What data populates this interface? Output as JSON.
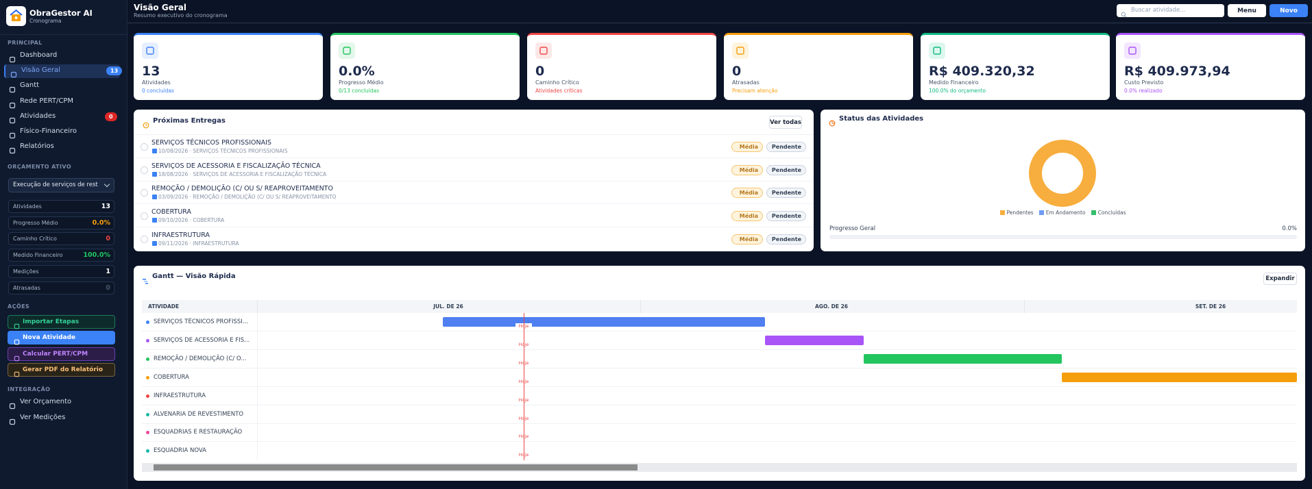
{
  "sidebar": {
    "brand": "ObraGestor AI",
    "brand_sub": "Cronograma",
    "principal_title": "PRINCIPAL",
    "nav": [
      {
        "label": "Dashboard"
      },
      {
        "label": "Visão Geral",
        "badge": 13
      },
      {
        "label": "Gantt"
      },
      {
        "label": "Rede PERT/CPM"
      },
      {
        "label": "Atividades",
        "badge": 0
      },
      {
        "label": "Físico-Financeiro"
      },
      {
        "label": "Relatórios"
      }
    ],
    "budget_title": "ORÇAMENTO ATIVO",
    "budget_select": "Execução de serviços de rest",
    "stats": [
      {
        "label": "Atividades",
        "value": 13
      },
      {
        "label": "Progresso Médio",
        "value": "0.0%"
      },
      {
        "label": "Caminho Crítico",
        "value": 0
      },
      {
        "label": "Medido Financeiro",
        "value": "100.0%"
      },
      {
        "label": "Medições",
        "value": 1
      },
      {
        "label": "Atrasadas",
        "value": 0
      }
    ],
    "actions_title": "AÇÕES",
    "actions": [
      "Importar Etapas",
      "Nova Atividade",
      "Calcular PERT/CPM",
      "Gerar PDF do Relatório"
    ],
    "integration_title": "INTEGRAÇÃO",
    "integration": [
      "Ver Orçamento",
      "Ver Medições"
    ]
  },
  "header": {
    "title": "Visão Geral",
    "subtitle": "Resumo executivo do cronograma",
    "search_placeholder": "Buscar atividade...",
    "menu_button": "Menu",
    "new_button": "Novo"
  },
  "kpis": [
    {
      "value": "13",
      "label": "Atividades",
      "sub": "0 concluídas"
    },
    {
      "value": "0.0%",
      "label": "Progresso Médio",
      "sub": "0/13 concluídas"
    },
    {
      "value": "0",
      "label": "Caminho Crítico",
      "sub": "Atividades críticas"
    },
    {
      "value": "0",
      "label": "Atrasadas",
      "sub": "Precisam atenção"
    },
    {
      "value": "R$ 409.320,32",
      "label": "Medido Financeiro",
      "sub": "100.0% do orçamento"
    },
    {
      "value": "R$ 409.973,94",
      "label": "Custo Previsto",
      "sub": "0.0% realizado"
    }
  ],
  "deliveries": {
    "title": "Próximas Entregas",
    "button": "Ver todas",
    "items": [
      {
        "name": "SERVIÇOS TÉCNICOS PROFISSIONAIS",
        "meta": "10/08/2026 · SERVIÇOS TÉCNICOS PROFISSIONAIS",
        "priority": "Média",
        "status": "Pendente"
      },
      {
        "name": "SERVIÇOS DE ACESSORIA E FISCALIZAÇÃO TÉCNICA",
        "meta": "18/08/2026 · SERVIÇOS DE ACESSORIA E FISCALIZAÇÃO TÉCNICA",
        "priority": "Média",
        "status": "Pendente"
      },
      {
        "name": "REMOÇÃO / DEMOLIÇÃO (C/ OU S/ REAPROVEITAMENTO",
        "meta": "03/09/2026 · REMOÇÃO / DEMOLIÇÃO (C/ OU S/ REAPROVEITAMENTO",
        "priority": "Média",
        "status": "Pendente"
      },
      {
        "name": "COBERTURA",
        "meta": "09/10/2026 · COBERTURA",
        "priority": "Média",
        "status": "Pendente"
      },
      {
        "name": "INFRAESTRUTURA",
        "meta": "09/11/2026 · INFRAESTRUTURA",
        "priority": "Média",
        "status": "Pendente"
      }
    ]
  },
  "status": {
    "title": "Status das Atividades",
    "legend": [
      "Pendentes",
      "Em Andamento",
      "Concluídas"
    ],
    "progress_label": "Progresso Geral",
    "progress_value": "0.0%"
  },
  "gantt": {
    "title": "Gantt — Visão Rápida",
    "button": "Expandir",
    "column_header": "ATIVIDADE",
    "months": [
      "JUL. DE 26",
      "AGO. DE 26",
      "SET. DE 26"
    ],
    "today_label": "Hoje",
    "rows": [
      "SERVIÇOS TÉCNICOS PROFISSI...",
      "SERVIÇOS DE ACESSORIA E FIS...",
      "REMOÇÃO / DEMOLIÇÃO (C/ O...",
      "COBERTURA",
      "INFRAESTRUTURA",
      "ALVENARIA DE REVESTIMENTO",
      "ESQUADRIAS E RESTAURAÇÃO",
      "ESQUADRIA NOVA"
    ]
  }
}
